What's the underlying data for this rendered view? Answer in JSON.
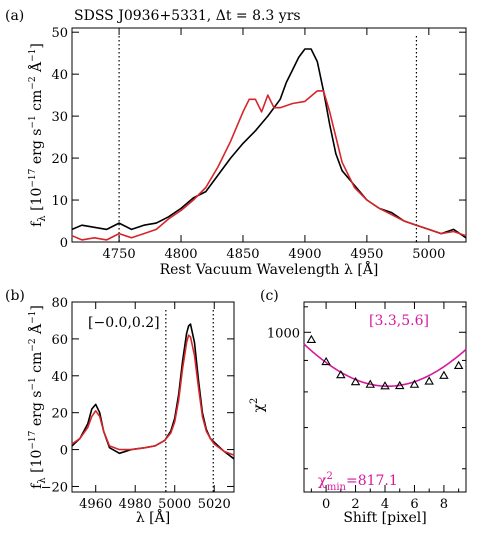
{
  "chart_data": [
    {
      "panel": "(a)",
      "type": "line",
      "title": "SDSS J0936+5331, Δt = 8.3 yrs",
      "xlabel": "Rest Vacuum Wavelength λ [Å]",
      "ylabel_parts": [
        "f",
        "λ",
        " [10",
        "−17",
        " erg s",
        "−1",
        " cm",
        "−2",
        " Å",
        "−1",
        "]"
      ],
      "xlim": [
        4712,
        5030
      ],
      "ylim": [
        0,
        51
      ],
      "xticks": [
        4750,
        4800,
        4850,
        4900,
        4950,
        5000
      ],
      "yticks": [
        0,
        10,
        20,
        30,
        40,
        50
      ],
      "vlines": [
        4750,
        4990
      ],
      "series": [
        {
          "color": "#000000",
          "x": [
            4712,
            4720,
            4730,
            4740,
            4750,
            4760,
            4770,
            4780,
            4790,
            4800,
            4810,
            4820,
            4830,
            4840,
            4850,
            4860,
            4870,
            4880,
            4885,
            4890,
            4895,
            4900,
            4905,
            4910,
            4915,
            4920,
            4925,
            4930,
            4940,
            4950,
            4960,
            4970,
            4980,
            4990,
            5000,
            5010,
            5020,
            5030
          ],
          "y": [
            3,
            4,
            3.5,
            3,
            4.5,
            3,
            4,
            4.5,
            6,
            8,
            10.5,
            12,
            16,
            20,
            23.5,
            26.5,
            30,
            34,
            38,
            41,
            44,
            46,
            46,
            43,
            36,
            28,
            21,
            17,
            13.5,
            10,
            8,
            7,
            5,
            4,
            3,
            2,
            3,
            1
          ]
        },
        {
          "color": "#d7262b",
          "x": [
            4712,
            4720,
            4730,
            4740,
            4750,
            4760,
            4770,
            4780,
            4790,
            4800,
            4810,
            4820,
            4830,
            4840,
            4850,
            4855,
            4860,
            4865,
            4870,
            4875,
            4880,
            4890,
            4900,
            4910,
            4915,
            4920,
            4925,
            4930,
            4940,
            4950,
            4960,
            4970,
            4980,
            4990,
            5000,
            5010,
            5020,
            5030
          ],
          "y": [
            1.5,
            0.5,
            1,
            0.5,
            2,
            1,
            2,
            3,
            5.5,
            7.5,
            10,
            13,
            18,
            24,
            31,
            34,
            34,
            31,
            35,
            32,
            32,
            33,
            33.5,
            36,
            36,
            31,
            25,
            19,
            13,
            10,
            8,
            6.5,
            5,
            4,
            3,
            2,
            2.5,
            1.5
          ]
        }
      ]
    },
    {
      "panel": "(b)",
      "type": "line",
      "annotation": "[−0.0,0.2]",
      "xlabel": "λ [Å]",
      "ylabel_parts": [
        "f",
        "λ",
        " [10",
        "−17",
        " erg s",
        "−1",
        " cm",
        "−2",
        " Å",
        "−1",
        "]"
      ],
      "xlim": [
        4948,
        5030
      ],
      "ylim": [
        -23,
        80
      ],
      "xticks": [
        4960,
        4980,
        5000,
        5020
      ],
      "yticks": [
        -20,
        0,
        20,
        40,
        60,
        80
      ],
      "vlines": [
        4995.5,
        5019.5
      ],
      "series": [
        {
          "color": "#000000",
          "x": [
            4948,
            4952,
            4956,
            4958,
            4960,
            4962,
            4964,
            4967,
            4972,
            4978,
            4985,
            4990,
            4995,
            4998,
            5000,
            5002,
            5004,
            5006,
            5007,
            5008,
            5010,
            5012,
            5014,
            5016,
            5018,
            5020,
            5025,
            5030
          ],
          "y": [
            2,
            6,
            14,
            22,
            24.5,
            20,
            10,
            1,
            -2,
            0,
            1,
            2,
            5,
            10,
            17,
            30,
            48,
            63,
            67,
            68,
            58,
            38,
            20,
            11,
            6,
            4,
            -1,
            -5
          ]
        },
        {
          "color": "#d7262b",
          "x": [
            4948,
            4952,
            4956,
            4958,
            4960,
            4962,
            4964,
            4967,
            4972,
            4978,
            4985,
            4990,
            4995,
            4998,
            5000,
            5002,
            5004,
            5006,
            5007,
            5008,
            5010,
            5012,
            5014,
            5016,
            5018,
            5020,
            5025,
            5030
          ],
          "y": [
            3,
            6,
            12,
            18,
            21,
            18,
            10,
            2,
            0,
            0,
            1,
            2,
            5,
            9,
            15,
            27,
            44,
            58,
            62,
            61,
            51,
            34,
            18,
            10,
            6,
            3,
            -1,
            -3
          ]
        }
      ]
    },
    {
      "panel": "(c)",
      "type": "scatter",
      "annotation_top": "[3.3,5.6]",
      "annotation_bottom_base": "χ",
      "annotation_bottom_sup": "2",
      "annotation_bottom_sub": "min",
      "annotation_bottom_value": "=817.1",
      "xlabel": "Shift [pixel]",
      "ylabel_base": "χ",
      "ylabel_sup": "2",
      "xlim": [
        -1.5,
        9.5
      ],
      "ylim_log": [
        550,
        1120
      ],
      "xticks": [
        0,
        2,
        4,
        6,
        8
      ],
      "yticks": [
        1000
      ],
      "tick_label_1000": "1000",
      "points": {
        "x": [
          -1,
          0,
          1,
          2,
          3,
          4,
          5,
          6,
          7,
          8,
          9
        ],
        "y": [
          972,
          895,
          852,
          830,
          822,
          817.1,
          818,
          822,
          832,
          850,
          882
        ]
      },
      "fit_color": "#d6199c",
      "annotation_color": "#d6199c"
    }
  ]
}
